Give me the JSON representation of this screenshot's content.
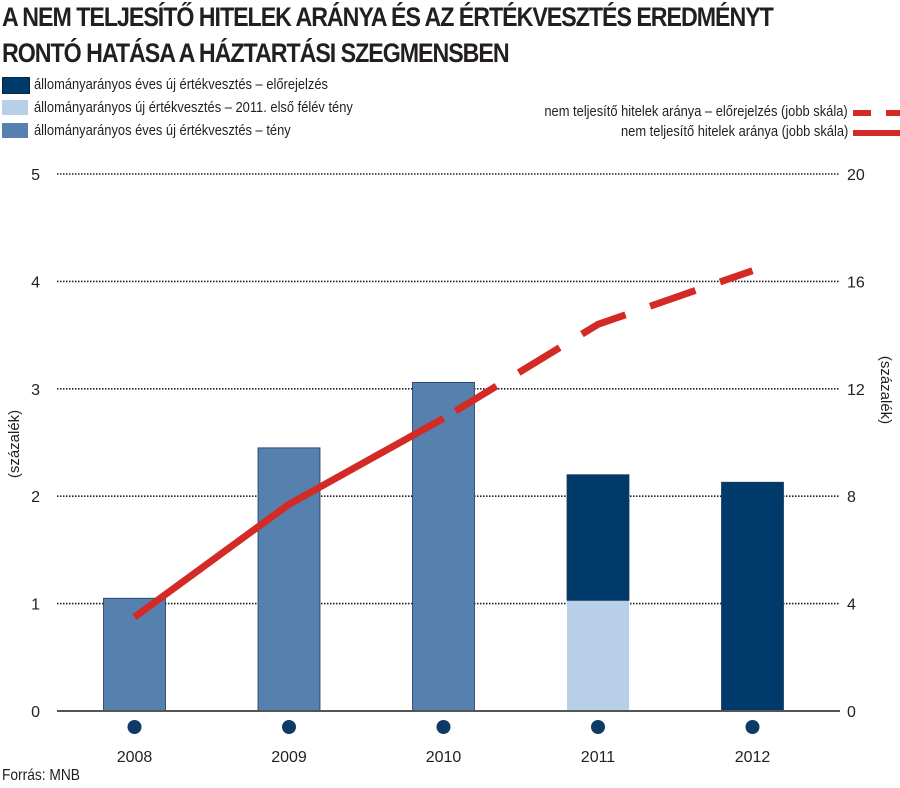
{
  "header": {
    "title_line1": "A NEM TELJESÍTŐ HITELEK ARÁNYA ÉS AZ ÉRTÉKVESZTÉS EREDMÉNYT",
    "title_line2": "RONTÓ HATÁSA A HÁZTARTÁSI SZEGMENSBEN"
  },
  "legend": {
    "items": [
      {
        "label": "állományarányos éves új értékvesztés – előrejelzés",
        "color": "#003a6b"
      },
      {
        "label": "állományarányos új értékvesztés – 2011. első félév tény",
        "color": "#b8cfe8"
      },
      {
        "label": "állományarányos éves új értékvesztés – tény",
        "color": "#5680ae"
      },
      {
        "label": "nem teljesítő hitelek aránya – előrejelzés (jobb skála)",
        "color": "#d42a26"
      },
      {
        "label": "nem teljesítő hitelek aránya (jobb skála)",
        "color": "#d42a26"
      }
    ]
  },
  "footer": {
    "source": "Forrás: MNB"
  },
  "chart_data": {
    "type": "bar",
    "title": "A NEM TELJESÍTŐ HITELEK ARÁNYA ÉS AZ ÉRTÉKVESZTÉS EREDMÉNYT RONTÓ HATÁSA A HÁZTARTÁSI SZEGMENSBEN",
    "categories": [
      "2008",
      "2009",
      "2010",
      "2011",
      "2012"
    ],
    "ylabel": "(százalék)",
    "ylabel_right": "(százalék)",
    "ylim": [
      0,
      5
    ],
    "ylim_right": [
      0,
      20
    ],
    "yticks": [
      "0",
      "1",
      "2",
      "3",
      "4",
      "5"
    ],
    "yticks_right": [
      "0",
      "4",
      "8",
      "12",
      "16",
      "20"
    ],
    "grid": true,
    "bar_series": [
      {
        "name": "állományarányos éves új értékvesztés – tény",
        "color": "#5680ae",
        "values": [
          1.05,
          2.45,
          3.06,
          null,
          null
        ]
      },
      {
        "name": "állományarányos új értékvesztés – 2011. első félév tény",
        "color": "#b8cfe8",
        "values": [
          null,
          null,
          null,
          1.03,
          null
        ]
      },
      {
        "name": "állományarányos éves új értékvesztés – előrejelzés",
        "color": "#003a6b",
        "values": [
          null,
          null,
          null,
          1.17,
          2.13
        ]
      }
    ],
    "line_series": [
      {
        "name": "nem teljesítő hitelek aránya (jobb skála)",
        "color": "#d42a26",
        "style": "solid",
        "values": [
          3.5,
          7.7,
          10.9,
          null,
          null
        ]
      },
      {
        "name": "nem teljesítő hitelek aránya – előrejelzés (jobb skála)",
        "color": "#d42a26",
        "style": "dashed",
        "values": [
          null,
          null,
          10.9,
          14.4,
          16.4
        ]
      }
    ]
  }
}
